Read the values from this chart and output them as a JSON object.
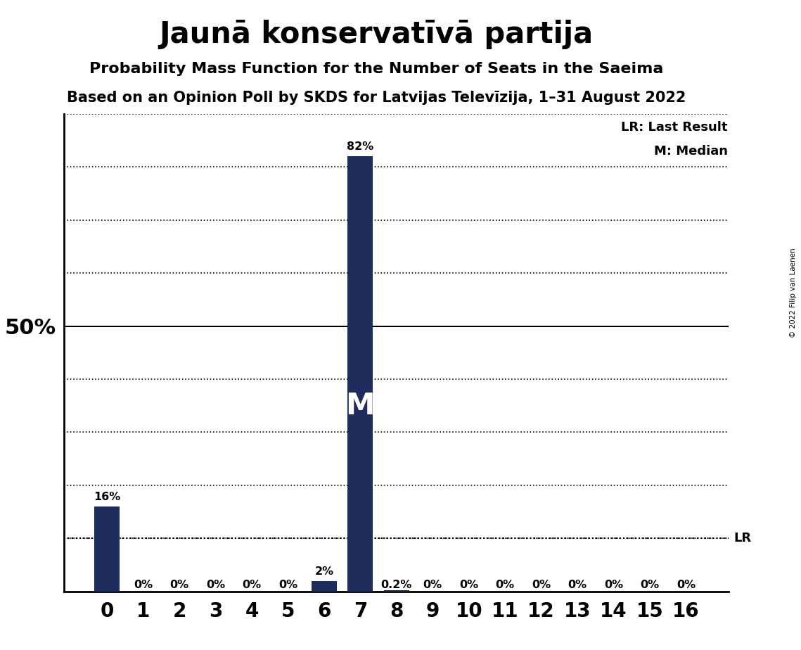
{
  "title": "Jaunā konservatīvā partija",
  "subtitle1": "Probability Mass Function for the Number of Seats in the Saeima",
  "subtitle2": "Based on an Opinion Poll by SKDS for Latvijas Televīzija, 1–31 August 2022",
  "copyright": "© 2022 Filip van Laenen",
  "categories": [
    0,
    1,
    2,
    3,
    4,
    5,
    6,
    7,
    8,
    9,
    10,
    11,
    12,
    13,
    14,
    15,
    16
  ],
  "values": [
    0.16,
    0.0,
    0.0,
    0.0,
    0.0,
    0.0,
    0.02,
    0.82,
    0.002,
    0.0,
    0.0,
    0.0,
    0.0,
    0.0,
    0.0,
    0.0,
    0.0
  ],
  "bar_labels": [
    "16%",
    "0%",
    "0%",
    "0%",
    "0%",
    "0%",
    "2%",
    "82%",
    "0.2%",
    "0%",
    "0%",
    "0%",
    "0%",
    "0%",
    "0%",
    "0%",
    "0%"
  ],
  "bar_color": "#1f2d5c",
  "median_seat": 7,
  "lr_value": 0.1,
  "ylim_max": 0.9,
  "legend_lr": "LR: Last Result",
  "legend_m": "M: Median",
  "background_color": "#ffffff",
  "title_fontsize": 30,
  "subtitle1_fontsize": 16,
  "subtitle2_fontsize": 15,
  "ytick_label": "50%",
  "ytick_val": 0.5
}
